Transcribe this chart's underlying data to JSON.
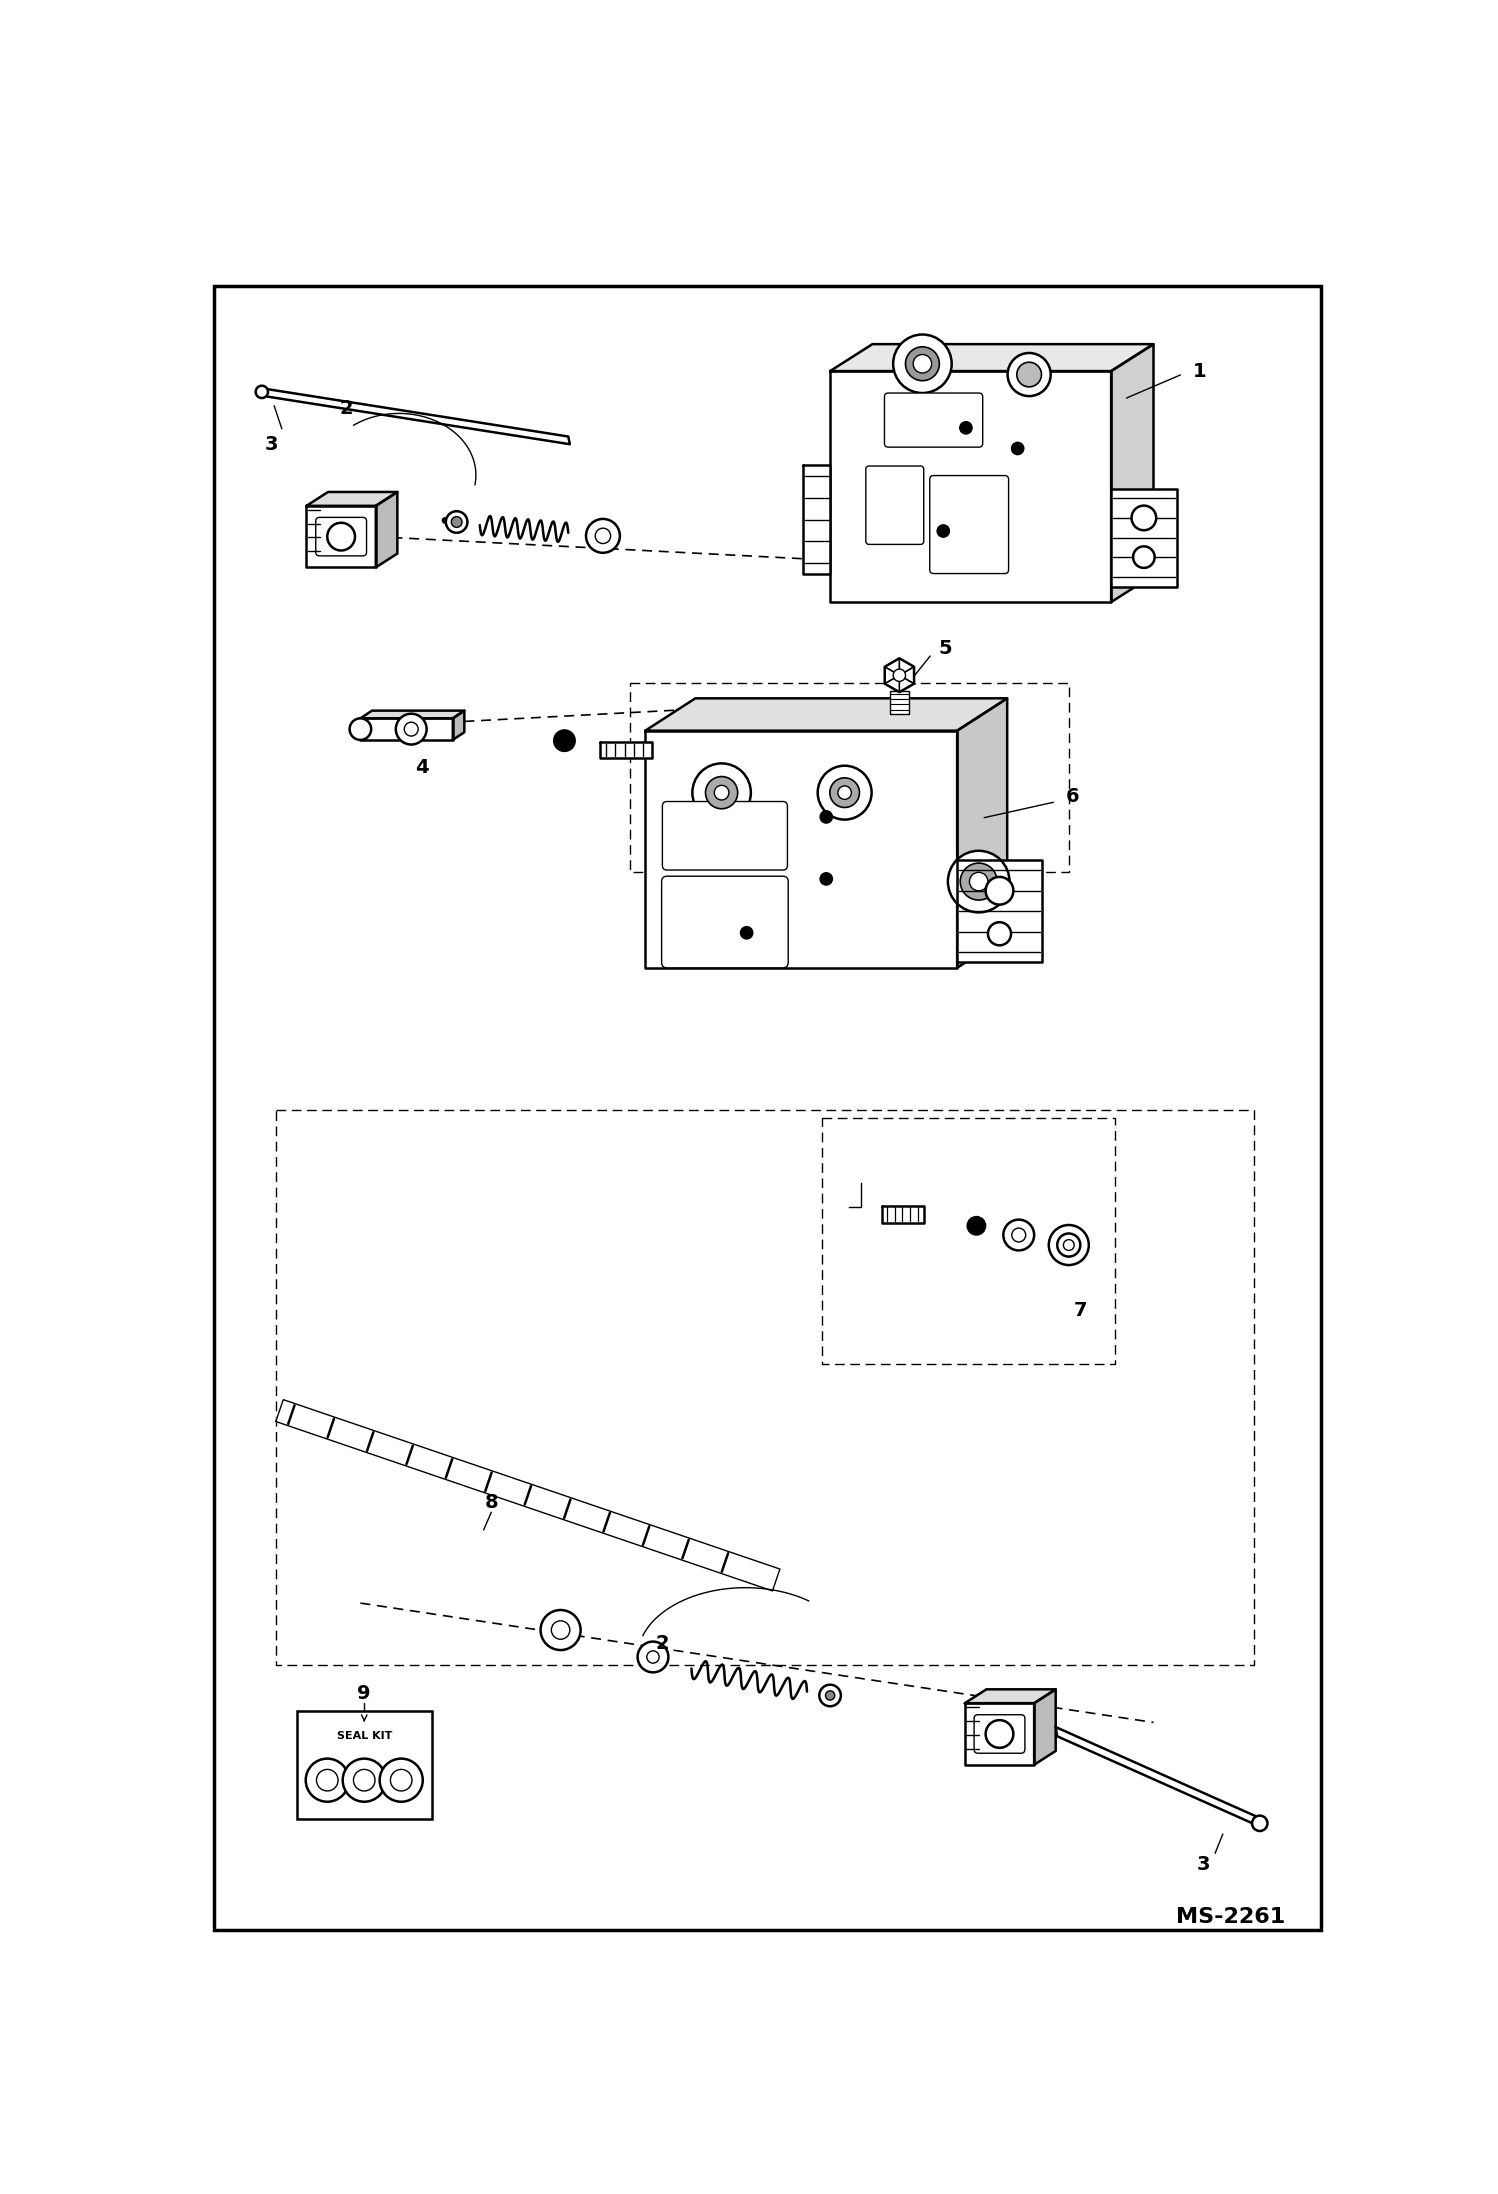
{
  "bg_color": "#ffffff",
  "border_color": "#000000",
  "line_color": "#000000",
  "figure_width": 14.98,
  "figure_height": 21.94,
  "dpi": 100,
  "watermark": "MS-2261",
  "label_fontsize": 14,
  "border_lw": 2.5
}
